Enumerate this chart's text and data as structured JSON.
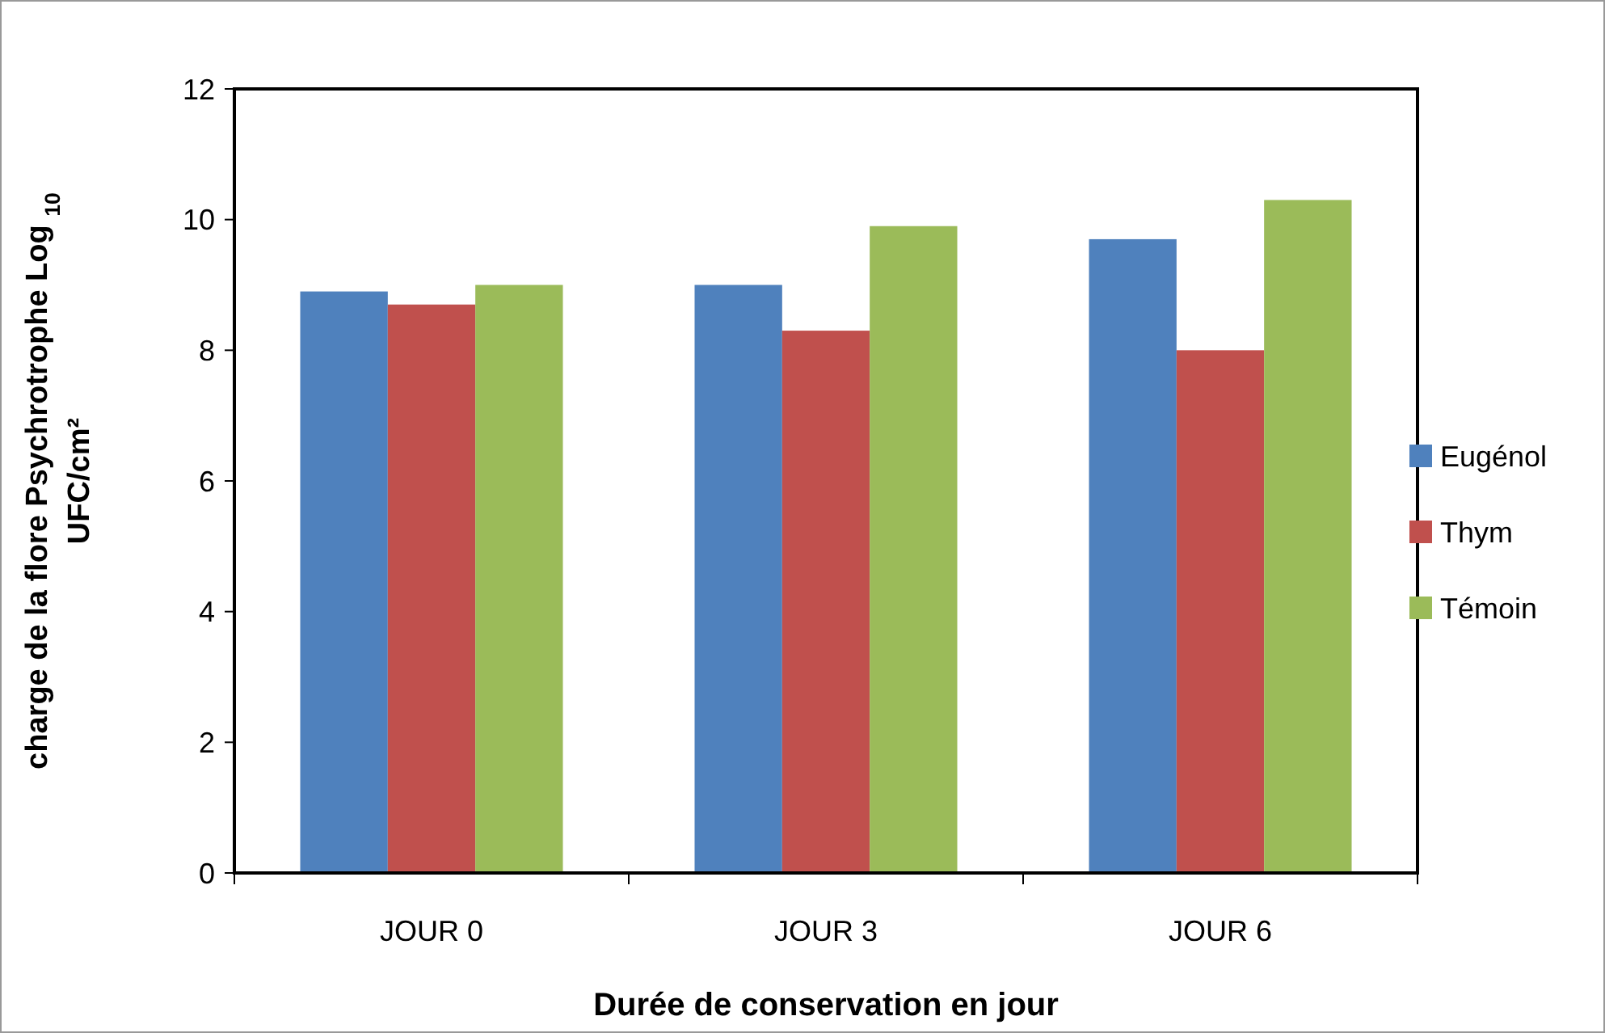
{
  "chart_data": {
    "type": "bar",
    "xlabel": "Durée de conservation en jour",
    "ylabel": "charge de la flore Psychrotrophe Log $_{10}$ UFC/cm²",
    "categories": [
      "JOUR 0",
      "JOUR 3",
      "JOUR 6"
    ],
    "series": [
      {
        "name": "Eugénol",
        "color": "#4f81bd",
        "values": [
          8.9,
          9.0,
          9.7
        ]
      },
      {
        "name": "Thym",
        "color": "#c0504d",
        "values": [
          8.7,
          8.3,
          8.0
        ]
      },
      {
        "name": "Témoin",
        "color": "#9bbb59",
        "values": [
          9.0,
          9.9,
          10.3
        ]
      }
    ],
    "ylim": [
      0,
      12
    ],
    "yticks": [
      0,
      2,
      4,
      6,
      8,
      10,
      12
    ],
    "grid": false,
    "legend": "right"
  }
}
